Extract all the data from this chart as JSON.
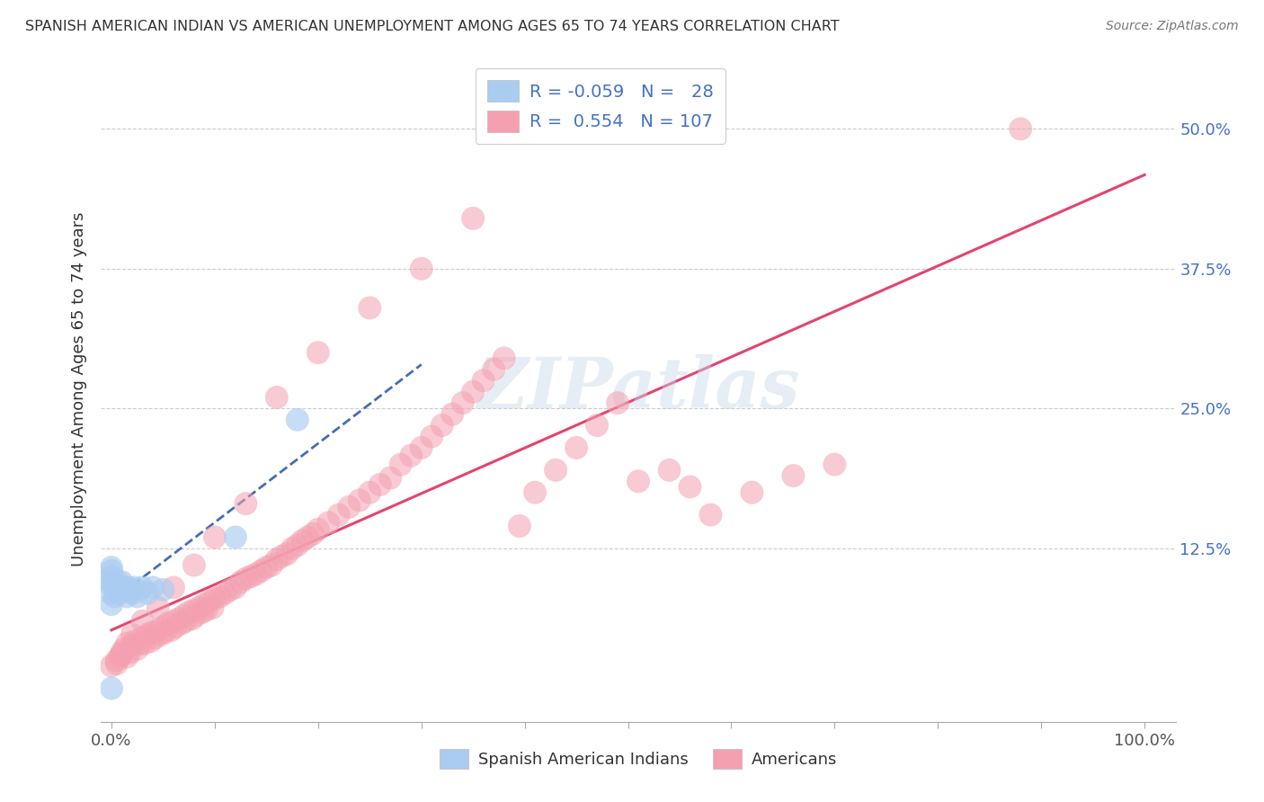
{
  "title": "SPANISH AMERICAN INDIAN VS AMERICAN UNEMPLOYMENT AMONG AGES 65 TO 74 YEARS CORRELATION CHART",
  "source": "Source: ZipAtlas.com",
  "ylabel": "Unemployment Among Ages 65 to 74 years",
  "xlim": [
    -0.01,
    1.03
  ],
  "ylim": [
    -0.03,
    0.565
  ],
  "x_ticks": [
    0.0,
    0.1,
    0.2,
    0.3,
    0.4,
    0.5,
    0.6,
    0.7,
    0.8,
    0.9,
    1.0
  ],
  "x_tick_labels": [
    "0.0%",
    "",
    "",
    "",
    "",
    "",
    "",
    "",
    "",
    "",
    "100.0%"
  ],
  "y_ticks": [
    0.0,
    0.125,
    0.25,
    0.375,
    0.5
  ],
  "y_tick_labels": [
    "",
    "12.5%",
    "25.0%",
    "37.5%",
    "50.0%"
  ],
  "legend_blue_label": "Spanish American Indians",
  "legend_pink_label": "Americans",
  "blue_color": "#AACCF0",
  "pink_color": "#F4A0B0",
  "blue_line_color": "#2255AA",
  "pink_line_color": "#E03060",
  "legend_r_blue_val": "-0.059",
  "legend_n_blue_val": "28",
  "legend_r_pink_val": "0.554",
  "legend_n_pink_val": "107",
  "blue_scatter_x": [
    0.0,
    0.0,
    0.0,
    0.0,
    0.0,
    0.0,
    0.0,
    0.003,
    0.003,
    0.005,
    0.006,
    0.008,
    0.01,
    0.01,
    0.012,
    0.015,
    0.016,
    0.018,
    0.02,
    0.022,
    0.025,
    0.03,
    0.035,
    0.04,
    0.05,
    0.12,
    0.18,
    0.0
  ],
  "blue_scatter_y": [
    0.085,
    0.092,
    0.095,
    0.1,
    0.105,
    0.108,
    0.075,
    0.082,
    0.09,
    0.088,
    0.095,
    0.085,
    0.09,
    0.095,
    0.088,
    0.082,
    0.09,
    0.088,
    0.085,
    0.09,
    0.082,
    0.09,
    0.085,
    0.09,
    0.088,
    0.135,
    0.24,
    0.0
  ],
  "pink_scatter_x": [
    0.0,
    0.005,
    0.01,
    0.012,
    0.015,
    0.018,
    0.02,
    0.022,
    0.025,
    0.028,
    0.03,
    0.032,
    0.035,
    0.038,
    0.04,
    0.042,
    0.045,
    0.048,
    0.05,
    0.052,
    0.055,
    0.058,
    0.06,
    0.062,
    0.065,
    0.068,
    0.07,
    0.072,
    0.075,
    0.078,
    0.08,
    0.082,
    0.085,
    0.088,
    0.09,
    0.092,
    0.095,
    0.098,
    0.1,
    0.105,
    0.11,
    0.115,
    0.12,
    0.125,
    0.13,
    0.135,
    0.14,
    0.145,
    0.15,
    0.155,
    0.16,
    0.165,
    0.17,
    0.175,
    0.18,
    0.185,
    0.19,
    0.195,
    0.2,
    0.21,
    0.22,
    0.23,
    0.24,
    0.25,
    0.26,
    0.27,
    0.28,
    0.29,
    0.3,
    0.31,
    0.32,
    0.33,
    0.34,
    0.35,
    0.36,
    0.37,
    0.38,
    0.395,
    0.41,
    0.43,
    0.45,
    0.47,
    0.49,
    0.51,
    0.54,
    0.56,
    0.58,
    0.62,
    0.66,
    0.7,
    0.88,
    0.35,
    0.3,
    0.25,
    0.2,
    0.16,
    0.13,
    0.1,
    0.08,
    0.06,
    0.045,
    0.03,
    0.02,
    0.015,
    0.01,
    0.008,
    0.005
  ],
  "pink_scatter_y": [
    0.02,
    0.025,
    0.03,
    0.035,
    0.028,
    0.032,
    0.038,
    0.042,
    0.035,
    0.04,
    0.045,
    0.04,
    0.048,
    0.042,
    0.05,
    0.045,
    0.052,
    0.048,
    0.055,
    0.05,
    0.058,
    0.052,
    0.06,
    0.055,
    0.062,
    0.058,
    0.065,
    0.06,
    0.068,
    0.062,
    0.07,
    0.065,
    0.072,
    0.068,
    0.075,
    0.07,
    0.078,
    0.072,
    0.08,
    0.082,
    0.085,
    0.088,
    0.09,
    0.095,
    0.098,
    0.1,
    0.102,
    0.105,
    0.108,
    0.11,
    0.115,
    0.118,
    0.12,
    0.125,
    0.128,
    0.132,
    0.135,
    0.138,
    0.142,
    0.148,
    0.155,
    0.162,
    0.168,
    0.175,
    0.182,
    0.188,
    0.2,
    0.208,
    0.215,
    0.225,
    0.235,
    0.245,
    0.255,
    0.265,
    0.275,
    0.285,
    0.295,
    0.145,
    0.175,
    0.195,
    0.215,
    0.235,
    0.255,
    0.185,
    0.195,
    0.18,
    0.155,
    0.175,
    0.19,
    0.2,
    0.5,
    0.42,
    0.375,
    0.34,
    0.3,
    0.26,
    0.165,
    0.135,
    0.11,
    0.09,
    0.072,
    0.06,
    0.048,
    0.04,
    0.032,
    0.028,
    0.022
  ],
  "watermark_text": "ZIPatlas",
  "background_color": "#FFFFFF",
  "grid_color": "#CCCCCC"
}
